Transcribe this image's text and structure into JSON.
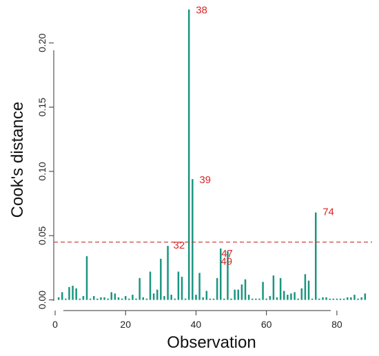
{
  "chart_data": {
    "type": "bar",
    "xlabel": "Observation",
    "ylabel": "Cook's distance",
    "xlim": [
      0,
      90
    ],
    "ylim": [
      -0.004,
      0.228
    ],
    "x_ticks": [
      0,
      20,
      40,
      60,
      80
    ],
    "y_ticks": [
      0.0,
      0.05,
      0.1,
      0.15,
      0.2
    ],
    "y_tick_labels": [
      "0.00",
      "0.05",
      "0.10",
      "0.15",
      "0.20"
    ],
    "threshold": 0.045,
    "grid": false,
    "colors": {
      "bar": "#1a9580",
      "threshold": "#c0392b",
      "label": "#d62828"
    },
    "x": [
      1,
      2,
      3,
      4,
      5,
      6,
      7,
      8,
      9,
      10,
      11,
      12,
      13,
      14,
      15,
      16,
      17,
      18,
      19,
      20,
      21,
      22,
      23,
      24,
      25,
      26,
      27,
      28,
      29,
      30,
      31,
      32,
      33,
      34,
      35,
      36,
      37,
      38,
      39,
      40,
      41,
      42,
      43,
      44,
      45,
      46,
      47,
      48,
      49,
      50,
      51,
      52,
      53,
      54,
      55,
      56,
      57,
      58,
      59,
      60,
      61,
      62,
      63,
      64,
      65,
      66,
      67,
      68,
      69,
      70,
      71,
      72,
      73,
      74,
      75,
      76,
      77,
      78,
      79,
      80,
      81,
      82,
      83,
      84,
      85,
      86,
      87,
      88
    ],
    "values": [
      0.002,
      0.006,
      0.001,
      0.01,
      0.011,
      0.009,
      0.001,
      0.003,
      0.034,
      0.001,
      0.003,
      0.001,
      0.002,
      0.002,
      0.001,
      0.006,
      0.005,
      0.002,
      0.001,
      0.003,
      0.001,
      0.004,
      0.001,
      0.017,
      0.002,
      0.001,
      0.022,
      0.005,
      0.008,
      0.032,
      0.003,
      0.042,
      0.004,
      0.001,
      0.022,
      0.018,
      0.001,
      0.226,
      0.094,
      0.004,
      0.021,
      0.002,
      0.007,
      0.001,
      0.001,
      0.017,
      0.04,
      0.001,
      0.038,
      0.001,
      0.008,
      0.008,
      0.012,
      0.016,
      0.004,
      0.001,
      0.001,
      0.001,
      0.014,
      0.001,
      0.003,
      0.019,
      0.002,
      0.017,
      0.007,
      0.004,
      0.005,
      0.006,
      0.001,
      0.009,
      0.02,
      0.015,
      0.001,
      0.068,
      0.001,
      0.002,
      0.002,
      0.001,
      0.001,
      0.001,
      0.001,
      0.001,
      0.002,
      0.002,
      0.004,
      0.001,
      0.002,
      0.005
    ],
    "labeled_points": [
      {
        "x": 38,
        "text": "38"
      },
      {
        "x": 39,
        "text": "39"
      },
      {
        "x": 32,
        "text": "32"
      },
      {
        "x": 47,
        "text": "47"
      },
      {
        "x": 49,
        "text": "49"
      },
      {
        "x": 74,
        "text": "74"
      }
    ]
  }
}
